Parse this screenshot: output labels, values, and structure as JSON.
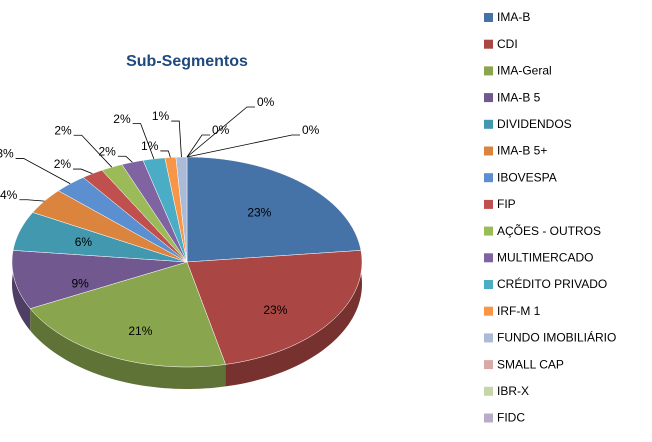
{
  "chart_data": {
    "type": "pie",
    "title": "Sub-Segmentos",
    "categories": [
      "IMA-B",
      "CDI",
      "IMA-Geral",
      "IMA-B 5",
      "DIVIDENDOS",
      "IMA-B 5+",
      "IBOVESPA",
      "FIP",
      "AÇÕES - OUTROS",
      "MULTIMERCADO",
      "CRÉDITO PRIVADO",
      "IRF-M 1",
      "FUNDO IMOBILIÁRIO",
      "SMALL CAP",
      "IBR-X",
      "FIDC"
    ],
    "values": [
      23,
      23,
      21,
      9,
      6,
      4,
      3,
      2,
      2,
      2,
      2,
      1,
      1,
      0,
      0,
      0
    ],
    "value_labels": [
      "23%",
      "23%",
      "21%",
      "9%",
      "6%",
      "4%",
      "3%",
      "2%",
      "2%",
      "2%",
      "2%",
      "1%",
      "1%",
      "0%",
      "0%",
      "0%"
    ],
    "colors": [
      "#4572a7",
      "#aa4643",
      "#89a54e",
      "#71588f",
      "#4198af",
      "#db843d",
      "#5b8fd0",
      "#c0504d",
      "#9bbb59",
      "#8064a2",
      "#4bacc6",
      "#f79646",
      "#aabad7",
      "#d9a9a7",
      "#c5d6a9",
      "#b9acc9"
    ],
    "legend": "right"
  }
}
